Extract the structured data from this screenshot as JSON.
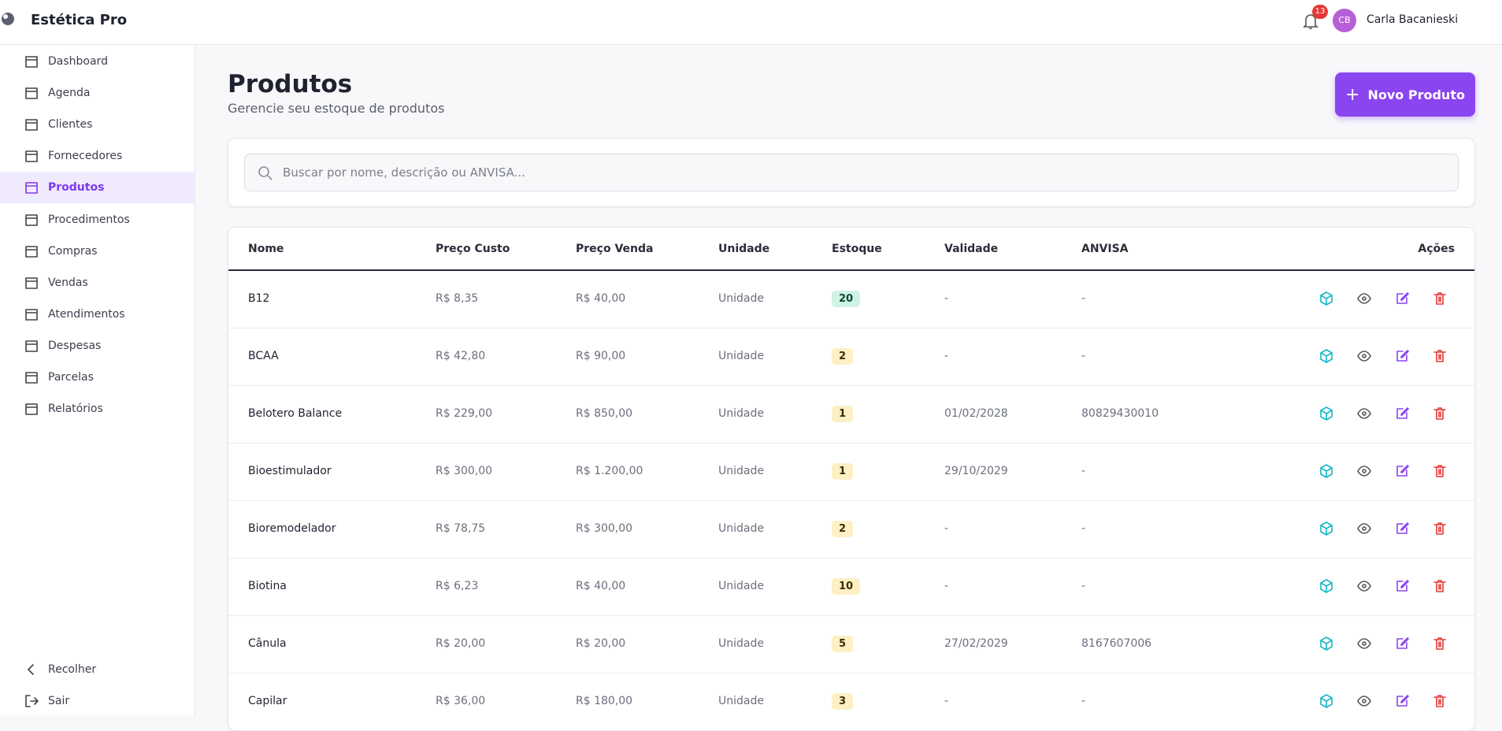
{
  "header": {
    "brand": "Estética Pro",
    "notification_count": "13",
    "user_initials": "CB",
    "user_name": "Carla Bacanieski"
  },
  "sidebar": {
    "items": [
      "Dashboard",
      "Agenda",
      "Clientes",
      "Fornecedores",
      "Produtos",
      "Procedimentos",
      "Compras",
      "Vendas",
      "Atendimentos",
      "Despesas",
      "Parcelas",
      "Relatórios"
    ],
    "active": 4,
    "footer": [
      "Recolher",
      "Sair"
    ]
  },
  "page": {
    "title": "Produtos",
    "subtitle": "Gerencie seu estoque de produtos",
    "button": "Novo Produto",
    "search_placeholder": "Buscar por nome, descrição ou ANVISA..."
  },
  "table": {
    "columns": [
      "Nome",
      "Preço Custo",
      "Preço Venda",
      "Unidade",
      "Estoque",
      "Validade",
      "ANVISA",
      "Ações"
    ],
    "rows": [
      [
        "B12",
        "R$ 8,35",
        "R$ 40,00",
        "Unidade",
        "20",
        "-",
        "-"
      ],
      [
        "BCAA",
        "R$ 42,80",
        "R$ 90,00",
        "Unidade",
        "2",
        "-",
        "-"
      ],
      [
        "Belotero Balance",
        "R$ 229,00",
        "R$ 850,00",
        "Unidade",
        "1",
        "01/02/2028",
        "80829430010"
      ],
      [
        "Bioestimulador",
        "R$ 300,00",
        "R$ 1.200,00",
        "Unidade",
        "1",
        "29/10/2029",
        "-"
      ],
      [
        "Bioremodelador",
        "R$ 78,75",
        "R$ 300,00",
        "Unidade",
        "2",
        "-",
        "-"
      ],
      [
        "Biotina",
        "R$ 6,23",
        "R$ 40,00",
        "Unidade",
        "10",
        "-",
        "-"
      ],
      [
        "Cânula",
        "R$ 20,00",
        "R$ 20,00",
        "Unidade",
        "5",
        "27/02/2029",
        "8167607006"
      ],
      [
        "Capilar",
        "R$ 36,00",
        "R$ 180,00",
        "Unidade",
        "3",
        "-",
        "-"
      ]
    ],
    "stock_badge_colors": [
      "green",
      "yellow",
      "yellow",
      "yellow",
      "yellow",
      "yellow",
      "yellow",
      "yellow"
    ]
  }
}
